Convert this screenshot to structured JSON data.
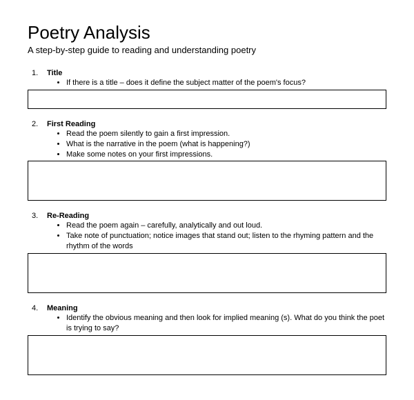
{
  "header": {
    "title": "Poetry Analysis",
    "subtitle": "A step-by-step guide to reading and understanding poetry"
  },
  "sections": [
    {
      "number": "1.",
      "title": "Title",
      "bullets": [
        "If there is a title – does it define the subject matter of the poem's focus?"
      ],
      "box_size": "s"
    },
    {
      "number": "2.",
      "title": "First Reading",
      "bullets": [
        "Read the poem silently to gain a first impression.",
        "What is the narrative in the poem (what is happening?)",
        "Make some notes on your first impressions."
      ],
      "box_size": "m"
    },
    {
      "number": "3.",
      "title": "Re-Reading",
      "bullets": [
        "Read the poem again – carefully, analytically and out loud.",
        "Take note of punctuation; notice images that stand out; listen to the rhyming pattern and the rhythm of the words"
      ],
      "box_size": "m"
    },
    {
      "number": "4.",
      "title": "Meaning",
      "bullets": [
        "Identify the obvious meaning and then look for implied meaning (s). What do you think the poet is trying to say?"
      ],
      "box_size": "m"
    }
  ]
}
